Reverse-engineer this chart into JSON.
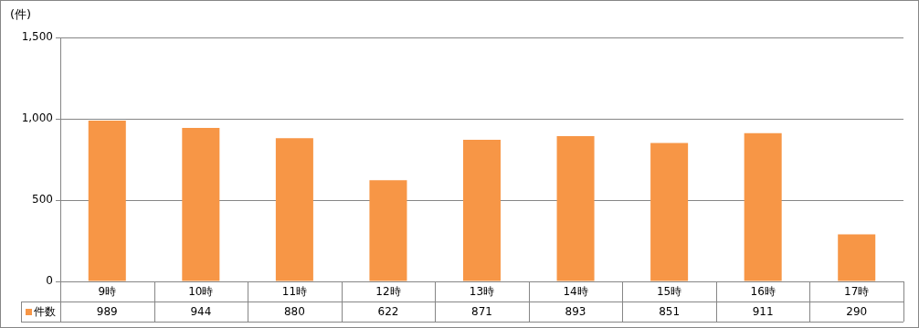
{
  "chart_data": {
    "type": "bar",
    "ylabel": "(件)",
    "categories": [
      "9時",
      "10時",
      "11時",
      "12時",
      "13時",
      "14時",
      "15時",
      "16時",
      "17時"
    ],
    "series": [
      {
        "name": "件数",
        "color": "#f79646",
        "values": [
          989,
          944,
          880,
          622,
          871,
          893,
          851,
          911,
          290
        ]
      }
    ],
    "ylim": [
      0,
      1500
    ],
    "yticks": [
      {
        "value": 0,
        "label": "0"
      },
      {
        "value": 500,
        "label": "500"
      },
      {
        "value": 1000,
        "label": "1,000"
      },
      {
        "value": 1500,
        "label": "1,500"
      }
    ],
    "grid": "y",
    "legend": "bottom",
    "data_labels": true
  }
}
